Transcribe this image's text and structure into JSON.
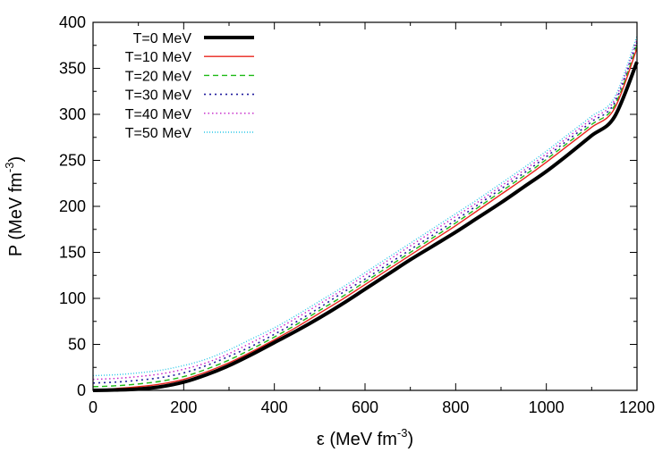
{
  "chart_data": {
    "type": "line",
    "title": "",
    "xlabel": {
      "main": "ε (MeV fm",
      "sup": "-3",
      "tail": ")"
    },
    "ylabel": {
      "main": "P (MeV fm",
      "sup": "-3",
      "tail": ")"
    },
    "xlim": [
      0,
      1200
    ],
    "ylim": [
      0,
      400
    ],
    "xticks": [
      "0",
      "200",
      "400",
      "600",
      "800",
      "1000",
      "1200"
    ],
    "yticks": [
      "0",
      "50",
      "100",
      "150",
      "200",
      "250",
      "300",
      "350",
      "400"
    ],
    "x": [
      0,
      50,
      100,
      150,
      200,
      250,
      300,
      350,
      400,
      450,
      500,
      550,
      600,
      650,
      700,
      750,
      800,
      850,
      900,
      950,
      1000,
      1050,
      1100,
      1150,
      1200
    ],
    "series": [
      {
        "name": "T=0 MeV",
        "color": "#000000",
        "dash": "",
        "values": [
          0,
          0.5,
          1.5,
          4,
          9,
          17,
          27,
          39,
          52,
          65,
          79,
          94,
          110,
          126,
          142,
          157,
          172,
          188,
          204,
          221,
          238,
          257,
          277,
          297,
          357
        ]
      },
      {
        "name": "T=10 MeV",
        "color": "#e8241c",
        "dash": "",
        "values": [
          0.5,
          2,
          4,
          7,
          12,
          20,
          30,
          42,
          55,
          69,
          84,
          99,
          115,
          131,
          147,
          163,
          179,
          196,
          213,
          230,
          248,
          267,
          286,
          306,
          372
        ]
      },
      {
        "name": "T=20 MeV",
        "color": "#1dba16",
        "dash": "6,4",
        "values": [
          4,
          5,
          7,
          10,
          15,
          23,
          33,
          45,
          58,
          72,
          87,
          102,
          118,
          134,
          150,
          166,
          182,
          199,
          216,
          233,
          251,
          270,
          289,
          309,
          375
        ]
      },
      {
        "name": "T=30 MeV",
        "color": "#1f1a9c",
        "dash": "2,4",
        "values": [
          8,
          9,
          11,
          14,
          19,
          27,
          37,
          48,
          61,
          75,
          90,
          106,
          121,
          137,
          153,
          169,
          185,
          202,
          219,
          236,
          254,
          273,
          292,
          312,
          378
        ]
      },
      {
        "name": "T=40 MeV",
        "color": "#c41ec8",
        "dash": "1.5,3",
        "values": [
          12,
          13,
          15,
          18,
          23,
          30,
          40,
          52,
          65,
          79,
          94,
          109,
          125,
          141,
          157,
          173,
          189,
          205,
          222,
          239,
          257,
          276,
          295,
          315,
          381
        ]
      },
      {
        "name": "T=50 MeV",
        "color": "#29c8e8",
        "dash": "1,2",
        "values": [
          16,
          17,
          19,
          22,
          27,
          34,
          44,
          56,
          68,
          82,
          97,
          112,
          128,
          144,
          160,
          176,
          192,
          208,
          225,
          242,
          260,
          279,
          298,
          318,
          385
        ]
      }
    ]
  }
}
